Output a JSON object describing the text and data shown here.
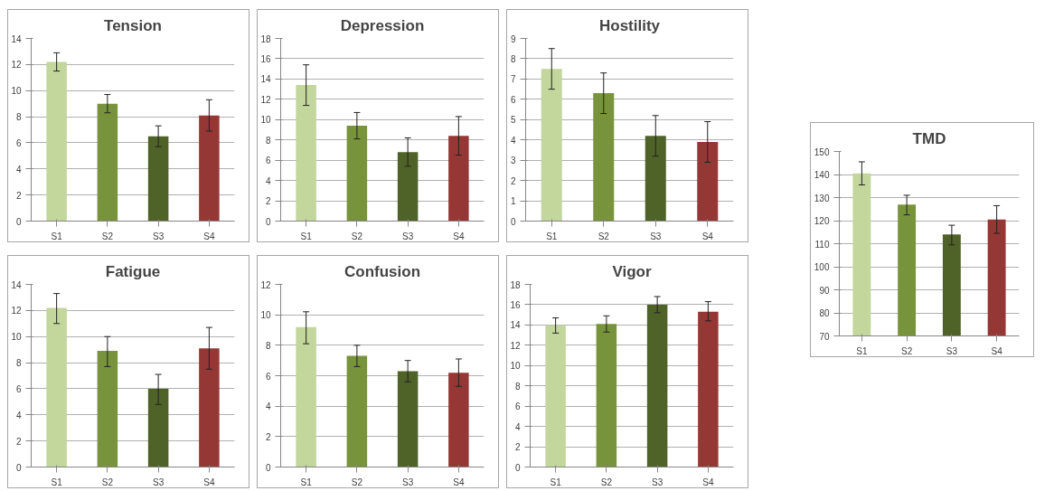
{
  "chart_data": [
    {
      "type": "bar",
      "title": "Tension",
      "categories": [
        "S1",
        "S2",
        "S3",
        "S4"
      ],
      "values": [
        12.2,
        9.0,
        6.5,
        8.1
      ],
      "colors": [
        "#c3d69b",
        "#77933c",
        "#4f6228",
        "#953735"
      ],
      "errors": [
        [
          11.5,
          12.9
        ],
        [
          8.3,
          9.7
        ],
        [
          5.7,
          7.3
        ],
        [
          6.9,
          9.3
        ]
      ],
      "ylim": [
        0,
        14
      ],
      "yticks": [
        0,
        2,
        4,
        6,
        8,
        10,
        12,
        14
      ],
      "grid": "y"
    },
    {
      "type": "bar",
      "title": "Depression",
      "categories": [
        "S1",
        "S2",
        "S3",
        "S4"
      ],
      "values": [
        13.4,
        9.4,
        6.8,
        8.4
      ],
      "colors": [
        "#c3d69b",
        "#77933c",
        "#4f6228",
        "#953735"
      ],
      "errors": [
        [
          11.4,
          15.4
        ],
        [
          8.1,
          10.7
        ],
        [
          5.4,
          8.2
        ],
        [
          6.5,
          10.3
        ]
      ],
      "ylim": [
        0,
        18
      ],
      "yticks": [
        0,
        2,
        4,
        6,
        8,
        10,
        12,
        14,
        16,
        18
      ],
      "grid": "y"
    },
    {
      "type": "bar",
      "title": "Hostility",
      "categories": [
        "S1",
        "S2",
        "S3",
        "S4"
      ],
      "values": [
        7.5,
        6.3,
        4.2,
        3.9
      ],
      "colors": [
        "#c3d69b",
        "#77933c",
        "#4f6228",
        "#953735"
      ],
      "errors": [
        [
          6.5,
          8.5
        ],
        [
          5.3,
          7.3
        ],
        [
          3.2,
          5.2
        ],
        [
          2.9,
          4.9
        ]
      ],
      "ylim": [
        0,
        9
      ],
      "yticks": [
        0,
        1,
        2,
        3,
        4,
        5,
        6,
        7,
        8,
        9
      ],
      "grid": "y"
    },
    {
      "type": "bar",
      "title": "Fatigue",
      "categories": [
        "S1",
        "S2",
        "S3",
        "S4"
      ],
      "values": [
        12.2,
        8.9,
        6.0,
        9.1
      ],
      "colors": [
        "#c3d69b",
        "#77933c",
        "#4f6228",
        "#953735"
      ],
      "errors": [
        [
          11.0,
          13.3
        ],
        [
          7.7,
          10.0
        ],
        [
          4.8,
          7.1
        ],
        [
          7.5,
          10.7
        ]
      ],
      "ylim": [
        0,
        14
      ],
      "yticks": [
        0,
        2,
        4,
        6,
        8,
        10,
        12,
        14
      ],
      "grid": "y"
    },
    {
      "type": "bar",
      "title": "Confusion",
      "categories": [
        "S1",
        "S2",
        "S3",
        "S4"
      ],
      "values": [
        9.2,
        7.3,
        6.3,
        6.2
      ],
      "colors": [
        "#c3d69b",
        "#77933c",
        "#4f6228",
        "#953735"
      ],
      "errors": [
        [
          8.1,
          10.2
        ],
        [
          6.6,
          8.0
        ],
        [
          5.6,
          7.0
        ],
        [
          5.3,
          7.1
        ]
      ],
      "ylim": [
        0,
        12
      ],
      "yticks": [
        0,
        2,
        4,
        6,
        8,
        10,
        12
      ],
      "grid": "y"
    },
    {
      "type": "bar",
      "title": "Vigor",
      "categories": [
        "S1",
        "S2",
        "S3",
        "S4"
      ],
      "values": [
        14.0,
        14.1,
        16.0,
        15.3
      ],
      "colors": [
        "#c3d69b",
        "#77933c",
        "#4f6228",
        "#953735"
      ],
      "errors": [
        [
          13.2,
          14.7
        ],
        [
          13.3,
          14.9
        ],
        [
          15.2,
          16.8
        ],
        [
          14.4,
          16.3
        ]
      ],
      "ylim": [
        0,
        18
      ],
      "yticks": [
        0,
        2,
        4,
        6,
        8,
        10,
        12,
        14,
        16,
        18
      ],
      "grid": "y"
    },
    {
      "type": "bar",
      "title": "TMD",
      "categories": [
        "S1",
        "S2",
        "S3",
        "S4"
      ],
      "values": [
        140.5,
        127,
        114,
        120.5
      ],
      "colors": [
        "#c3d69b",
        "#77933c",
        "#4f6228",
        "#953735"
      ],
      "errors": [
        [
          135.5,
          145.5
        ],
        [
          122.5,
          131
        ],
        [
          109.5,
          118
        ],
        [
          114.5,
          126.5
        ]
      ],
      "ylim": [
        70,
        150
      ],
      "yticks": [
        70,
        80,
        90,
        100,
        110,
        120,
        130,
        140,
        150
      ],
      "grid": "y"
    }
  ]
}
